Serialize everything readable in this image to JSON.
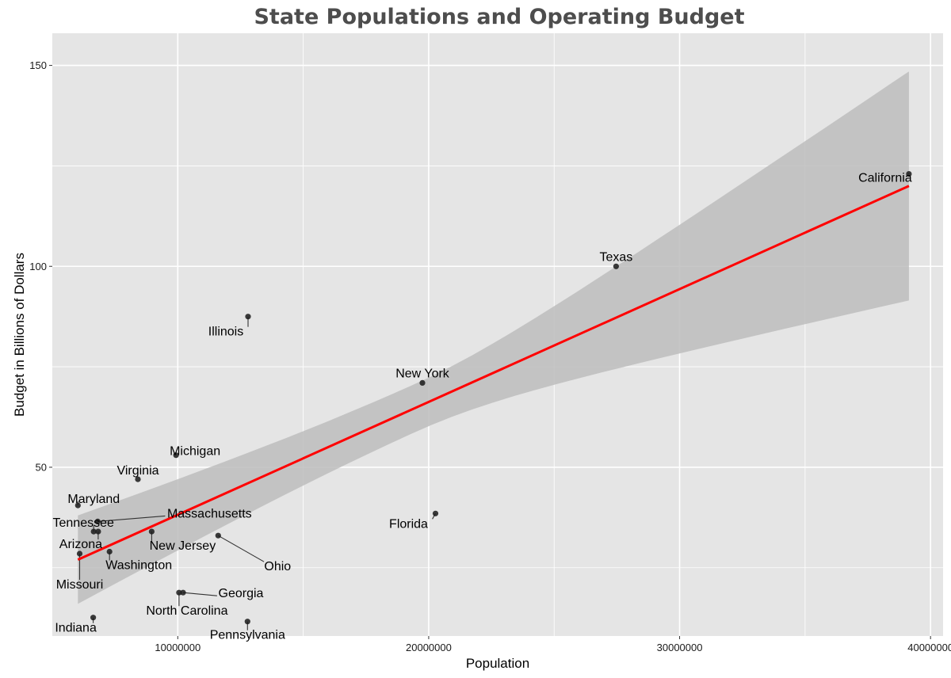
{
  "chart_data": {
    "type": "scatter",
    "title": "State Populations and Operating Budget",
    "xlabel": "Population",
    "ylabel": "Budget in Billions of Dollars",
    "xlim": [
      5000000,
      40500000
    ],
    "ylim": [
      8000,
      158000
    ],
    "y_units": "billions of dollars (values stored in millions)",
    "x_ticks": [
      10000000,
      20000000,
      30000000,
      40000000
    ],
    "x_tick_labels": [
      "10000000",
      "20000000",
      "30000000",
      "40000000"
    ],
    "y_ticks": [
      50000,
      100000,
      150000
    ],
    "y_tick_labels": [
      "50",
      "100",
      "150"
    ],
    "grid": true,
    "legend": "none",
    "colors": {
      "panel": "#e5e5e5",
      "grid": "#ffffff",
      "point": "#1a1a1a",
      "ribbon": "#bdbdbd",
      "fit_line": "#ff0000",
      "title": "#4d4d4d"
    },
    "points": [
      {
        "name": "California",
        "x": 39140000,
        "y": 123000
      },
      {
        "name": "Texas",
        "x": 27470000,
        "y": 100000
      },
      {
        "name": "Illinois",
        "x": 12800000,
        "y": 87500
      },
      {
        "name": "New York",
        "x": 19750000,
        "y": 71000
      },
      {
        "name": "Michigan",
        "x": 9930000,
        "y": 53000
      },
      {
        "name": "Virginia",
        "x": 8410000,
        "y": 47000
      },
      {
        "name": "Maryland",
        "x": 6020000,
        "y": 40500
      },
      {
        "name": "Florida",
        "x": 20270000,
        "y": 38500
      },
      {
        "name": "Massachusetts",
        "x": 6810000,
        "y": 36500
      },
      {
        "name": "Tennessee",
        "x": 6650000,
        "y": 34000
      },
      {
        "name": "Arizona",
        "x": 6830000,
        "y": 34000
      },
      {
        "name": "New Jersey",
        "x": 8960000,
        "y": 34000
      },
      {
        "name": "Ohio",
        "x": 11610000,
        "y": 33000
      },
      {
        "name": "Washington",
        "x": 7280000,
        "y": 29000
      },
      {
        "name": "Missouri",
        "x": 6090000,
        "y": 28500
      },
      {
        "name": "Georgia",
        "x": 10210000,
        "y": 18800
      },
      {
        "name": "North Carolina",
        "x": 10050000,
        "y": 18800
      },
      {
        "name": "Indiana",
        "x": 6630000,
        "y": 12600
      },
      {
        "name": "Pennsylvania",
        "x": 12780000,
        "y": 11600
      }
    ],
    "fit": {
      "x": [
        6020000,
        39140000
      ],
      "y": [
        27000,
        120000
      ],
      "ci_lower": [
        16000,
        92000
      ],
      "ci_upper": [
        38000,
        149000
      ]
    }
  }
}
